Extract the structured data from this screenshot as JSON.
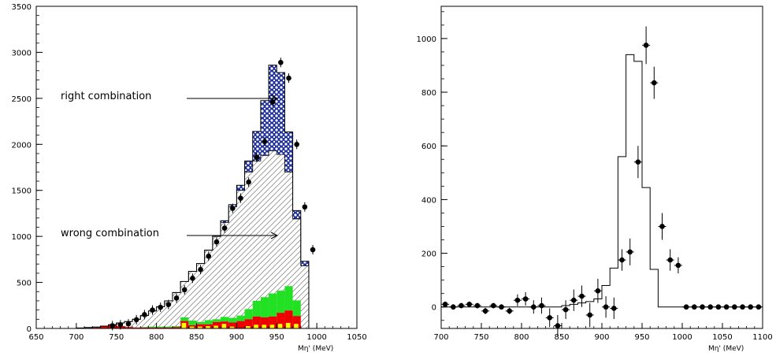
{
  "chart_data": [
    {
      "type": "histogram",
      "xlabel": "Mη' (MeV)",
      "xlim": [
        650,
        1050
      ],
      "ylim": [
        0,
        3500
      ],
      "x_ticks": [
        "650",
        "700",
        "750",
        "800",
        "850",
        "900",
        "950",
        "1000",
        "1050"
      ],
      "y_ticks": [
        "0",
        "500",
        "1000",
        "1500",
        "2000",
        "2500",
        "3000",
        "3500"
      ],
      "annotations": [
        {
          "text": "right combination",
          "arrow_to": [
            955,
            2500
          ]
        },
        {
          "text": "wrong combination",
          "arrow_to": [
            955,
            1000
          ]
        }
      ],
      "bin_width": 10,
      "bin_edges_start": 700,
      "total_mc": [
        5,
        10,
        15,
        25,
        40,
        60,
        75,
        100,
        140,
        190,
        235,
        300,
        390,
        510,
        620,
        705,
        850,
        1000,
        1170,
        1345,
        1555,
        1820,
        2140,
        2475,
        2860,
        2780,
        2135,
        1280,
        730
      ],
      "wrong_combination": [
        5,
        10,
        15,
        25,
        40,
        60,
        75,
        100,
        140,
        190,
        235,
        300,
        390,
        510,
        620,
        705,
        850,
        1000,
        1150,
        1320,
        1500,
        1700,
        1820,
        1880,
        1930,
        1890,
        1700,
        1190,
        680
      ],
      "background_red": [
        0,
        0,
        10,
        30,
        45,
        25,
        15,
        10,
        10,
        10,
        10,
        10,
        15,
        80,
        35,
        45,
        45,
        70,
        75,
        65,
        80,
        100,
        130,
        120,
        130,
        170,
        195,
        135,
        0
      ],
      "background_green": [
        0,
        0,
        0,
        0,
        0,
        0,
        0,
        0,
        5,
        10,
        10,
        10,
        10,
        40,
        50,
        25,
        45,
        30,
        50,
        50,
        60,
        110,
        170,
        220,
        250,
        240,
        265,
        170,
        0
      ],
      "background_yellow": [
        0,
        0,
        0,
        0,
        0,
        0,
        0,
        0,
        0,
        0,
        0,
        0,
        0,
        60,
        20,
        20,
        25,
        30,
        50,
        20,
        0,
        25,
        40,
        40,
        40,
        50,
        60,
        50,
        0
      ],
      "data_points": {
        "x": [
          745,
          755,
          765,
          775,
          785,
          795,
          805,
          815,
          825,
          835,
          845,
          855,
          865,
          875,
          885,
          895,
          905,
          915,
          925,
          935,
          945,
          955,
          965,
          975,
          985,
          995
        ],
        "y": [
          30,
          40,
          50,
          95,
          150,
          200,
          230,
          260,
          330,
          420,
          545,
          640,
          785,
          940,
          1090,
          1305,
          1415,
          1590,
          1860,
          2030,
          2460,
          2890,
          2720,
          2000,
          1320,
          855
        ]
      },
      "colors": {
        "right": "#1e2f9e",
        "red": "#ee0000",
        "green": "#22e022",
        "yellow": "#ffff00"
      }
    },
    {
      "type": "histogram",
      "xlabel": "Mη' (MeV)",
      "xlim": [
        700,
        1100
      ],
      "ylim": [
        -80,
        1120
      ],
      "x_ticks": [
        "700",
        "750",
        "800",
        "850",
        "900",
        "950",
        "1000",
        "1050",
        "1100"
      ],
      "y_ticks": [
        "0",
        "200",
        "400",
        "600",
        "800",
        "1000"
      ],
      "bin_width": 10,
      "bin_edges_start": 700,
      "mc_fit": [
        0,
        0,
        0,
        0,
        0,
        0,
        0,
        0,
        0,
        0,
        0,
        0,
        0,
        0,
        0,
        5,
        10,
        15,
        20,
        30,
        80,
        145,
        560,
        940,
        915,
        445,
        140,
        0,
        0,
        0,
        0,
        0,
        0,
        0,
        0,
        0,
        0,
        0,
        0,
        0
      ],
      "data_points": {
        "x": [
          705,
          715,
          725,
          735,
          745,
          755,
          765,
          775,
          785,
          795,
          805,
          815,
          825,
          835,
          845,
          855,
          865,
          875,
          885,
          895,
          905,
          915,
          925,
          935,
          945,
          955,
          965,
          975,
          985,
          995,
          1005,
          1015,
          1025,
          1035,
          1045,
          1055,
          1065,
          1075,
          1085,
          1095
        ],
        "y": [
          10,
          0,
          5,
          10,
          5,
          -15,
          5,
          0,
          -15,
          25,
          30,
          0,
          5,
          -40,
          -70,
          -10,
          25,
          40,
          -30,
          60,
          0,
          -5,
          175,
          205,
          540,
          975,
          835,
          300,
          175,
          155,
          0,
          0,
          0,
          0,
          0,
          0,
          0,
          0,
          0,
          0
        ],
        "err": [
          10,
          10,
          10,
          10,
          10,
          12,
          10,
          10,
          12,
          22,
          25,
          25,
          30,
          35,
          40,
          35,
          40,
          40,
          45,
          45,
          40,
          40,
          40,
          50,
          60,
          70,
          60,
          50,
          40,
          30,
          5,
          5,
          5,
          5,
          5,
          5,
          5,
          5,
          5,
          5
        ]
      }
    }
  ]
}
